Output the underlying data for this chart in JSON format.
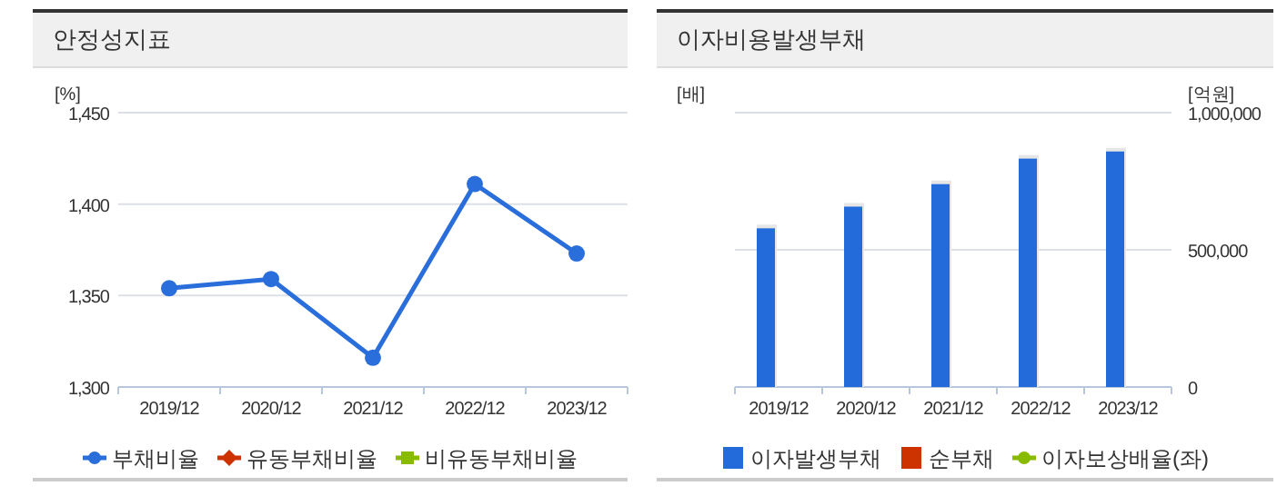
{
  "chart_data": [
    {
      "type": "line",
      "title": "안정성지표",
      "ylabel": "[%]",
      "categories": [
        "2019/12",
        "2020/12",
        "2021/12",
        "2022/12",
        "2023/12"
      ],
      "ylim": [
        1300,
        1450
      ],
      "yticks": [
        {
          "value": 1300,
          "label": "1,300"
        },
        {
          "value": 1350,
          "label": "1,350"
        },
        {
          "value": 1400,
          "label": "1,400"
        },
        {
          "value": 1450,
          "label": "1,450"
        }
      ],
      "grid": "y",
      "legend": "bottom",
      "series": [
        {
          "name": "부채비율",
          "color": "#2a6edb",
          "marker": "circle",
          "values": [
            1354,
            1359,
            1316,
            1411,
            1373
          ]
        },
        {
          "name": "유동부채비율",
          "color": "#cc3300",
          "marker": "diamond",
          "values": [
            null,
            null,
            null,
            null,
            null
          ]
        },
        {
          "name": "비유동부채비율",
          "color": "#88bb00",
          "marker": "square",
          "values": [
            null,
            null,
            null,
            null,
            null
          ]
        }
      ]
    },
    {
      "type": "bar",
      "title": "이자비용발생부채",
      "ylabel": "[배]",
      "y2label": "[억원]",
      "categories": [
        "2019/12",
        "2020/12",
        "2021/12",
        "2022/12",
        "2023/12"
      ],
      "y2lim": [
        0,
        1000000
      ],
      "y2ticks": [
        0,
        {
          "value": 500000,
          "label": "500,000"
        },
        {
          "value": 1000000,
          "label": "1,000,000"
        }
      ],
      "grid": "y",
      "legend": "bottom",
      "series": [
        {
          "name": "이자발생부채",
          "color": "#236bdb",
          "axis": "y2",
          "values": [
            585000,
            664000,
            746000,
            839000,
            865000
          ]
        },
        {
          "name": "순부채",
          "color": "#cc3300",
          "axis": "y2",
          "values": [
            null,
            null,
            null,
            null,
            null
          ]
        },
        {
          "name": "이자보상배율(좌)",
          "type": "line",
          "color": "#88bb00",
          "marker": "circle",
          "values": [
            null,
            null,
            null,
            null,
            null
          ]
        }
      ]
    }
  ]
}
